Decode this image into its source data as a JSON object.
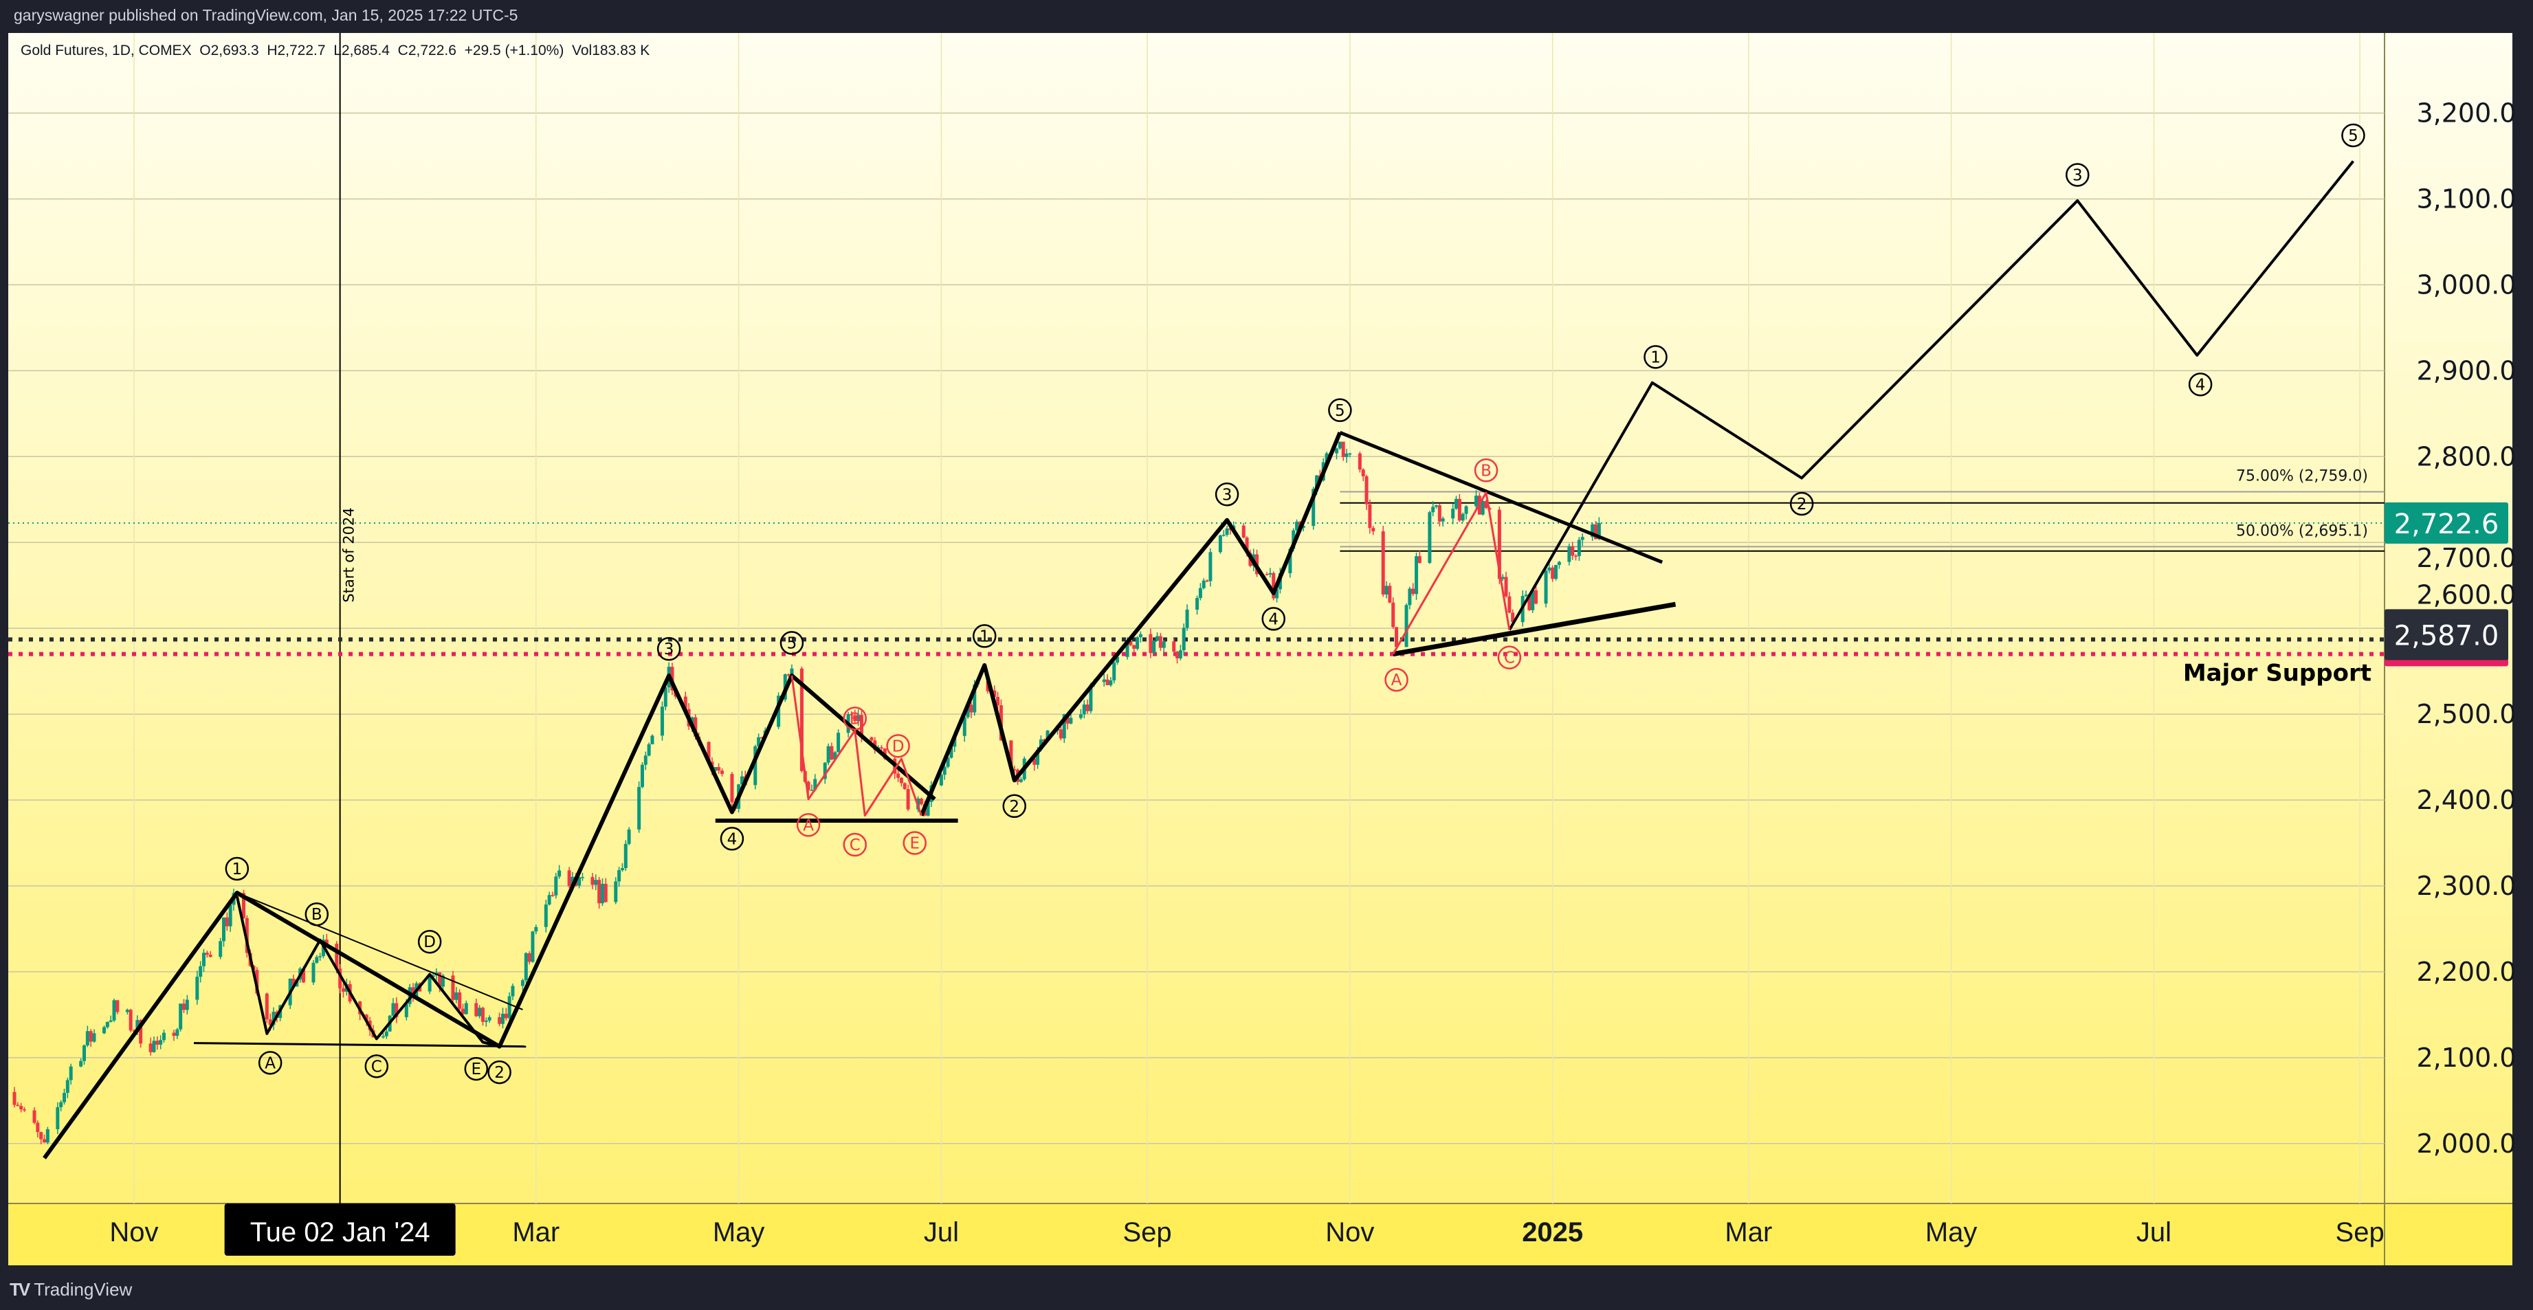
{
  "header": {
    "published": "garyswagner published on TradingView.com, Jan 15, 2025 17:22 UTC-5"
  },
  "legend": {
    "symbol": "Gold Futures, 1D, COMEX",
    "open": "O2,693.3",
    "high": "H2,722.7",
    "low": "L2,685.4",
    "close": "C2,722.6",
    "change": "+29.5 (+1.10%)",
    "volume": "Vol183.83 K"
  },
  "footer": {
    "brand": "TradingView",
    "logo_icon": "tradingview-logo-icon"
  },
  "colors": {
    "up": "#089981",
    "down": "#f23645",
    "wave": "#000000",
    "wave_red": "#f23645",
    "last_price": "#089981",
    "support_badge": "#2a2e39",
    "support_red": "#e91e63",
    "bg_top": "#fffef0",
    "bg_bottom": "#fff176"
  },
  "chart_data": {
    "type": "candlestick",
    "title": "Gold Futures, 1D, COMEX",
    "ylim": [
      1920,
      3290
    ],
    "y_ticks": [
      "2,000.0",
      "2,100.0",
      "2,200.0",
      "2,300.0",
      "2,400.0",
      "2,500.0",
      "2,600.0",
      "2,700.0",
      "2,800.0",
      "2,900.0",
      "3,000.0",
      "3,100.0",
      "3,200.0"
    ],
    "y_tick_values": [
      2000,
      2100,
      2200,
      2300,
      2400,
      2500,
      2600,
      2700,
      2800,
      2900,
      3000,
      3100,
      3200
    ],
    "x_ticks": [
      {
        "label": "Nov",
        "date": "2023-11-01"
      },
      {
        "label": "Tue 02 Jan '24",
        "date": "2024-01-02",
        "crosshair": true
      },
      {
        "label": "Mar",
        "date": "2024-03-01"
      },
      {
        "label": "May",
        "date": "2024-05-01"
      },
      {
        "label": "Jul",
        "date": "2024-07-01"
      },
      {
        "label": "Sep",
        "date": "2024-09-01"
      },
      {
        "label": "Nov",
        "date": "2024-11-01"
      },
      {
        "label": "2025",
        "date": "2025-01-01",
        "bold": true
      },
      {
        "label": "Mar",
        "date": "2025-03-01"
      },
      {
        "label": "May",
        "date": "2025-05-01"
      },
      {
        "label": "Jul",
        "date": "2025-07-01"
      },
      {
        "label": "Sep",
        "date": "2025-09-01"
      }
    ],
    "price_path": [
      [
        "2023-09-26",
        2060
      ],
      [
        "2023-10-05",
        1992
      ],
      [
        "2023-10-14",
        2100
      ],
      [
        "2023-10-26",
        2156
      ],
      [
        "2023-11-09",
        2109
      ],
      [
        "2023-12-02",
        2288
      ],
      [
        "2023-12-10",
        2132
      ],
      [
        "2023-12-27",
        2231
      ],
      [
        "2024-01-13",
        2128
      ],
      [
        "2024-01-29",
        2194
      ],
      [
        "2024-02-19",
        2128
      ],
      [
        "2024-03-07",
        2307
      ],
      [
        "2024-03-24",
        2288
      ],
      [
        "2024-04-10",
        2551
      ],
      [
        "2024-04-29",
        2391
      ],
      [
        "2024-05-17",
        2551
      ],
      [
        "2024-05-21",
        2410
      ],
      [
        "2024-06-04",
        2495
      ],
      [
        "2024-06-25",
        2382
      ],
      [
        "2024-07-14",
        2551
      ],
      [
        "2024-07-23",
        2429
      ],
      [
        "2024-08-07",
        2485
      ],
      [
        "2024-08-27",
        2579
      ],
      [
        "2024-09-10",
        2579
      ],
      [
        "2024-09-25",
        2730
      ],
      [
        "2024-10-09",
        2645
      ],
      [
        "2024-10-28",
        2824
      ],
      [
        "2024-11-05",
        2767
      ],
      [
        "2024-11-15",
        2579
      ],
      [
        "2024-11-25",
        2730
      ],
      [
        "2024-12-12",
        2748
      ],
      [
        "2024-12-19",
        2607
      ],
      [
        "2025-01-15",
        2722.6
      ]
    ],
    "last_price": {
      "value": 2722.6,
      "label": "2,722.6"
    },
    "support": {
      "value": 2587.0,
      "label": "2,587.0",
      "text": "Major Support",
      "red_level": 2570
    },
    "fib_levels": [
      {
        "label": "75.00% (2,759.0)",
        "value": 2759.0,
        "start": "2024-10-29"
      },
      {
        "label": "50.00% (2,695.1)",
        "value": 2695.1,
        "start": "2024-10-29"
      }
    ],
    "vertical_marker": {
      "date": "2024-01-02",
      "text": "Start of 2024"
    },
    "wave_lines": [
      {
        "color": "black",
        "width": 6,
        "points": [
          [
            "2023-10-05",
            1983
          ],
          [
            "2023-12-02",
            2292
          ],
          [
            "2024-02-19",
            2113
          ],
          [
            "2024-04-10",
            2545
          ],
          [
            "2024-04-29",
            2386
          ],
          [
            "2024-05-17",
            2545
          ],
          [
            "2024-06-29",
            2401
          ]
        ]
      },
      {
        "color": "black",
        "width": 6,
        "points": [
          [
            "2024-06-25",
            2382
          ],
          [
            "2024-07-14",
            2557
          ],
          [
            "2024-07-23",
            2423
          ],
          [
            "2024-09-25",
            2726
          ],
          [
            "2024-10-09",
            2641
          ],
          [
            "2024-10-29",
            2828
          ]
        ]
      },
      {
        "color": "black",
        "width": 5,
        "points": [
          [
            "2024-10-29",
            2828
          ],
          [
            "2025-02-03",
            2677
          ]
        ]
      },
      {
        "color": "black",
        "width": 7,
        "points": [
          [
            "2024-11-14",
            2570
          ],
          [
            "2025-02-07",
            2628
          ]
        ]
      },
      {
        "color": "black",
        "width": 4,
        "points": [
          [
            "2024-12-19",
            2598
          ],
          [
            "2025-01-31",
            2886
          ],
          [
            "2025-03-17",
            2775
          ],
          [
            "2025-06-08",
            3098
          ],
          [
            "2025-07-14",
            2918
          ],
          [
            "2025-08-30",
            3144
          ]
        ]
      },
      {
        "color": "black",
        "width": 4,
        "points": [
          [
            "2023-12-02",
            2288
          ],
          [
            "2023-12-11",
            2128
          ],
          [
            "2023-12-27",
            2237
          ],
          [
            "2024-01-13",
            2122
          ],
          [
            "2024-01-29",
            2197
          ],
          [
            "2024-02-14",
            2118
          ],
          [
            "2024-02-19",
            2113
          ]
        ]
      },
      {
        "color": "black",
        "width": 5,
        "points": [
          [
            "2023-12-02",
            2292
          ],
          [
            "2024-02-19",
            2113
          ]
        ]
      },
      {
        "color": "black",
        "width": 2,
        "points": [
          [
            "2023-12-02",
            2292
          ],
          [
            "2024-02-26",
            2156
          ]
        ]
      },
      {
        "color": "black",
        "width": 3,
        "points": [
          [
            "2023-11-19",
            2117
          ],
          [
            "2024-02-27",
            2113
          ]
        ]
      },
      {
        "color": "black",
        "width": 6,
        "points": [
          [
            "2024-04-24",
            2376
          ],
          [
            "2024-07-06",
            2376
          ]
        ]
      },
      {
        "color": "red",
        "width": 3,
        "points": [
          [
            "2024-05-17",
            2545
          ],
          [
            "2024-05-22",
            2401
          ],
          [
            "2024-06-05",
            2481
          ],
          [
            "2024-06-08",
            2382
          ],
          [
            "2024-06-19",
            2448
          ],
          [
            "2024-06-25",
            2382
          ]
        ]
      },
      {
        "color": "red",
        "width": 3,
        "points": [
          [
            "2024-11-14",
            2570
          ],
          [
            "2024-12-12",
            2758
          ],
          [
            "2024-12-19",
            2598
          ]
        ]
      }
    ],
    "wave_labels": [
      {
        "text": "1",
        "color": "black",
        "date": "2023-12-02",
        "price": 2320
      },
      {
        "text": "B",
        "color": "black",
        "date": "2023-12-26",
        "price": 2267
      },
      {
        "text": "D",
        "color": "black",
        "date": "2024-01-29",
        "price": 2235
      },
      {
        "text": "A",
        "color": "black",
        "date": "2023-12-12",
        "price": 2094
      },
      {
        "text": "C",
        "color": "black",
        "date": "2024-01-13",
        "price": 2090
      },
      {
        "text": "E",
        "color": "black",
        "date": "2024-02-12",
        "price": 2087
      },
      {
        "text": "2",
        "color": "black",
        "date": "2024-02-19",
        "price": 2083
      },
      {
        "text": "3",
        "color": "black",
        "date": "2024-04-10",
        "price": 2576
      },
      {
        "text": "5",
        "color": "black",
        "date": "2024-05-17",
        "price": 2583
      },
      {
        "text": "4",
        "color": "black",
        "date": "2024-04-29",
        "price": 2355
      },
      {
        "text": "B",
        "color": "red",
        "date": "2024-06-05",
        "price": 2495
      },
      {
        "text": "D",
        "color": "red",
        "date": "2024-06-18",
        "price": 2463
      },
      {
        "text": "A",
        "color": "red",
        "date": "2024-05-22",
        "price": 2371
      },
      {
        "text": "C",
        "color": "red",
        "date": "2024-06-05",
        "price": 2348
      },
      {
        "text": "E",
        "color": "red",
        "date": "2024-06-23",
        "price": 2350
      },
      {
        "text": "1",
        "color": "black",
        "date": "2024-07-14",
        "price": 2591
      },
      {
        "text": "2",
        "color": "black",
        "date": "2024-07-23",
        "price": 2393
      },
      {
        "text": "3",
        "color": "black",
        "date": "2024-09-25",
        "price": 2756
      },
      {
        "text": "4",
        "color": "black",
        "date": "2024-10-09",
        "price": 2611
      },
      {
        "text": "5",
        "color": "black",
        "date": "2024-10-29",
        "price": 2854
      },
      {
        "text": "B",
        "color": "red",
        "date": "2024-12-12",
        "price": 2784
      },
      {
        "text": "A",
        "color": "red",
        "date": "2024-11-15",
        "price": 2540
      },
      {
        "text": "C",
        "color": "red",
        "date": "2024-12-19",
        "price": 2566
      },
      {
        "text": "1",
        "color": "black",
        "date": "2025-02-01",
        "price": 2916
      },
      {
        "text": "2",
        "color": "black",
        "date": "2025-03-17",
        "price": 2745
      },
      {
        "text": "3",
        "color": "black",
        "date": "2025-06-08",
        "price": 3128
      },
      {
        "text": "4",
        "color": "black",
        "date": "2025-07-15",
        "price": 2884
      },
      {
        "text": "5",
        "color": "black",
        "date": "2025-08-30",
        "price": 3174
      }
    ]
  }
}
